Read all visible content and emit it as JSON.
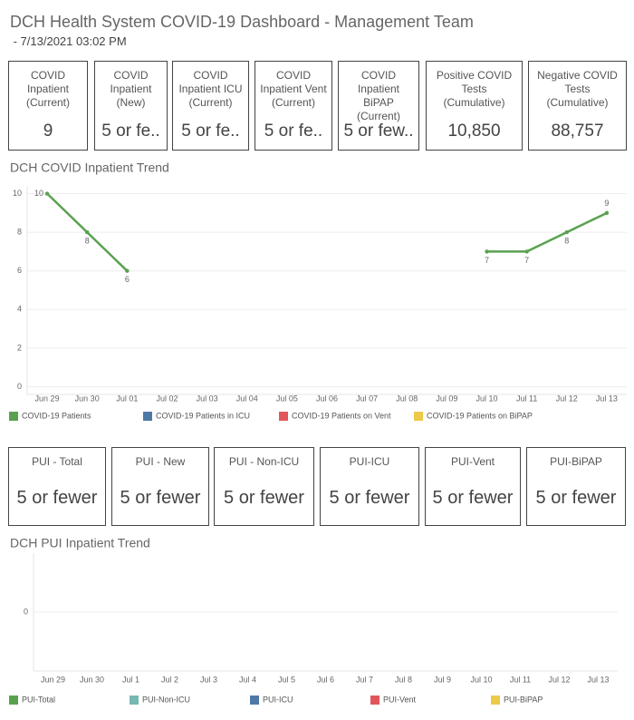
{
  "header": {
    "title": "DCH Health System COVID-19 Dashboard - Management Team",
    "subtitle": " - 7/13/2021 03:02 PM"
  },
  "kpis": [
    {
      "label": "COVID Inpatient (Current)",
      "value": "9"
    },
    {
      "label": "COVID Inpatient (New)",
      "value": "5 or fe.."
    },
    {
      "label": "COVID Inpatient ICU (Current)",
      "value": "5 or fe.."
    },
    {
      "label": "COVID Inpatient Vent (Current)",
      "value": "5 or fe.."
    },
    {
      "label": "COVID Inpatient BiPAP (Current)",
      "value": "5 or few.."
    },
    {
      "label": "Positive COVID Tests (Cumulative)",
      "value": "10,850"
    },
    {
      "label": "Negative COVID Tests (Cumulative)",
      "value": "88,757"
    }
  ],
  "pui_kpis": [
    {
      "label": "PUI - Total",
      "value": "5 or fewer"
    },
    {
      "label": "PUI - New",
      "value": "5 or fewer"
    },
    {
      "label": "PUI - Non-ICU",
      "value": "5 or fewer"
    },
    {
      "label": "PUI-ICU",
      "value": "5 or fewer"
    },
    {
      "label": "PUI-Vent",
      "value": "5 or fewer"
    },
    {
      "label": "PUI-BiPAP",
      "value": "5 or fewer"
    }
  ],
  "chart_data": [
    {
      "type": "line",
      "title": "DCH COVID Inpatient Trend",
      "categories": [
        "Jun 29",
        "Jun 30",
        "Jul 01",
        "Jul 02",
        "Jul 03",
        "Jul 04",
        "Jul 05",
        "Jul 06",
        "Jul 07",
        "Jul 08",
        "Jul 09",
        "Jul 10",
        "Jul 11",
        "Jul 12",
        "Jul 13"
      ],
      "series": [
        {
          "name": "COVID-19 Patients",
          "color": "#59a14f",
          "values": [
            10,
            8,
            6,
            null,
            null,
            null,
            null,
            null,
            null,
            null,
            null,
            7,
            7,
            8,
            9
          ]
        },
        {
          "name": "COVID-19 Patients in ICU",
          "color": "#4e79a7",
          "values": [
            null,
            null,
            null,
            null,
            null,
            null,
            null,
            null,
            null,
            null,
            null,
            null,
            null,
            null,
            null
          ]
        },
        {
          "name": "COVID-19 Patients on Vent",
          "color": "#e15759",
          "values": [
            null,
            null,
            null,
            null,
            null,
            null,
            null,
            null,
            null,
            null,
            null,
            null,
            null,
            null,
            null
          ]
        },
        {
          "name": "COVID-19 Patients on BiPAP",
          "color": "#edc948",
          "values": [
            null,
            null,
            null,
            null,
            null,
            null,
            null,
            null,
            null,
            null,
            null,
            null,
            null,
            null,
            null
          ]
        }
      ],
      "ylim": [
        -0.4,
        10.4
      ],
      "yticks": [
        0,
        2,
        4,
        6,
        8,
        10
      ],
      "grid": true,
      "data_labels": true,
      "legend": "bottom"
    },
    {
      "type": "line",
      "title": "DCH PUI Inpatient Trend",
      "categories": [
        "Jun 29",
        "Jun 30",
        "Jul 1",
        "Jul 2",
        "Jul 3",
        "Jul 4",
        "Jul 5",
        "Jul 6",
        "Jul 7",
        "Jul 8",
        "Jul 9",
        "Jul 10",
        "Jul 11",
        "Jul 12",
        "Jul 13"
      ],
      "series": [
        {
          "name": "PUI-Total",
          "color": "#59a14f",
          "values": [
            null,
            null,
            null,
            null,
            null,
            null,
            null,
            null,
            null,
            null,
            null,
            null,
            null,
            null,
            null
          ]
        },
        {
          "name": "PUI-Non-ICU",
          "color": "#76b7b2",
          "values": [
            null,
            null,
            null,
            null,
            null,
            null,
            null,
            null,
            null,
            null,
            null,
            null,
            null,
            null,
            null
          ]
        },
        {
          "name": "PUI-ICU",
          "color": "#4e79a7",
          "values": [
            null,
            null,
            null,
            null,
            null,
            null,
            null,
            null,
            null,
            null,
            null,
            null,
            null,
            null,
            null
          ]
        },
        {
          "name": "PUI-Vent",
          "color": "#e15759",
          "values": [
            null,
            null,
            null,
            null,
            null,
            null,
            null,
            null,
            null,
            null,
            null,
            null,
            null,
            null,
            null
          ]
        },
        {
          "name": "PUI-BiPAP",
          "color": "#edc948",
          "values": [
            null,
            null,
            null,
            null,
            null,
            null,
            null,
            null,
            null,
            null,
            null,
            null,
            null,
            null,
            null
          ]
        }
      ],
      "ylim": [
        -1,
        1
      ],
      "yticks": [
        0
      ],
      "grid": true,
      "data_labels": true,
      "legend": "bottom"
    }
  ]
}
